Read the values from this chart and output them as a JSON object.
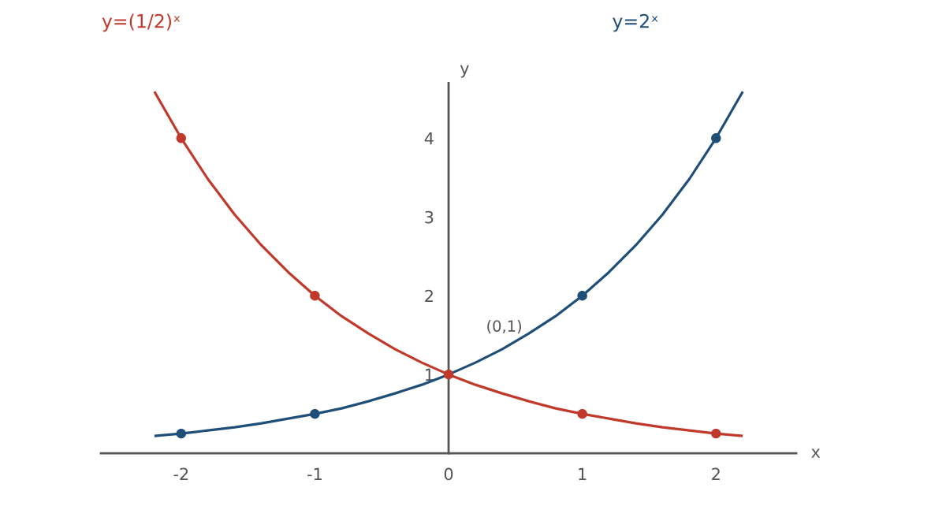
{
  "chart_data": {
    "type": "line",
    "xlabel": "x",
    "ylabel": "y",
    "xlim": [
      -2.6,
      2.6
    ],
    "ylim": [
      0,
      4.7
    ],
    "xticks": [
      -2,
      -1,
      0,
      1,
      2
    ],
    "yticks": [
      1,
      2,
      3,
      4
    ],
    "grid": false,
    "annotations": [
      "(0,1)"
    ],
    "series": [
      {
        "name": "y=2ˣ",
        "color": "#1f4e79",
        "marker": "none",
        "line_style": "solid",
        "x": [
          -2.2,
          -2.0,
          -1.8,
          -1.6,
          -1.4,
          -1.2,
          -1.0,
          -0.8,
          -0.6,
          -0.4,
          -0.2,
          0,
          0.2,
          0.4,
          0.6,
          0.8,
          1.0,
          1.2,
          1.4,
          1.6,
          1.8,
          2.0,
          2.2
        ],
        "values": [
          0.22,
          0.25,
          0.29,
          0.33,
          0.38,
          0.44,
          0.5,
          0.57,
          0.66,
          0.76,
          0.87,
          1.0,
          1.15,
          1.32,
          1.52,
          1.74,
          2.0,
          2.3,
          2.64,
          3.03,
          3.48,
          4.0,
          4.59
        ]
      },
      {
        "name": "y=(1/2)ˣ",
        "color": "#c0392b",
        "marker": "none",
        "line_style": "solid",
        "x": [
          -2.2,
          -2.0,
          -1.8,
          -1.6,
          -1.4,
          -1.2,
          -1.0,
          -0.8,
          -0.6,
          -0.4,
          -0.2,
          0,
          0.2,
          0.4,
          0.6,
          0.8,
          1.0,
          1.2,
          1.4,
          1.6,
          1.8,
          2.0,
          2.2
        ],
        "values": [
          4.59,
          4.0,
          3.48,
          3.03,
          2.64,
          2.3,
          2.0,
          1.74,
          1.52,
          1.32,
          1.15,
          1.0,
          0.87,
          0.76,
          0.66,
          0.57,
          0.5,
          0.44,
          0.38,
          0.33,
          0.29,
          0.25,
          0.22
        ]
      },
      {
        "type": "scatter",
        "color": "#1f4e79",
        "marker": "circle",
        "x": [
          -2,
          -1,
          1,
          2
        ],
        "values": [
          0.25,
          0.5,
          2,
          4
        ]
      },
      {
        "type": "scatter",
        "color": "#c0392b",
        "marker": "circle",
        "x": [
          -2,
          -1,
          0,
          1,
          2
        ],
        "values": [
          4,
          2,
          1,
          0.5,
          0.25
        ]
      }
    ]
  }
}
